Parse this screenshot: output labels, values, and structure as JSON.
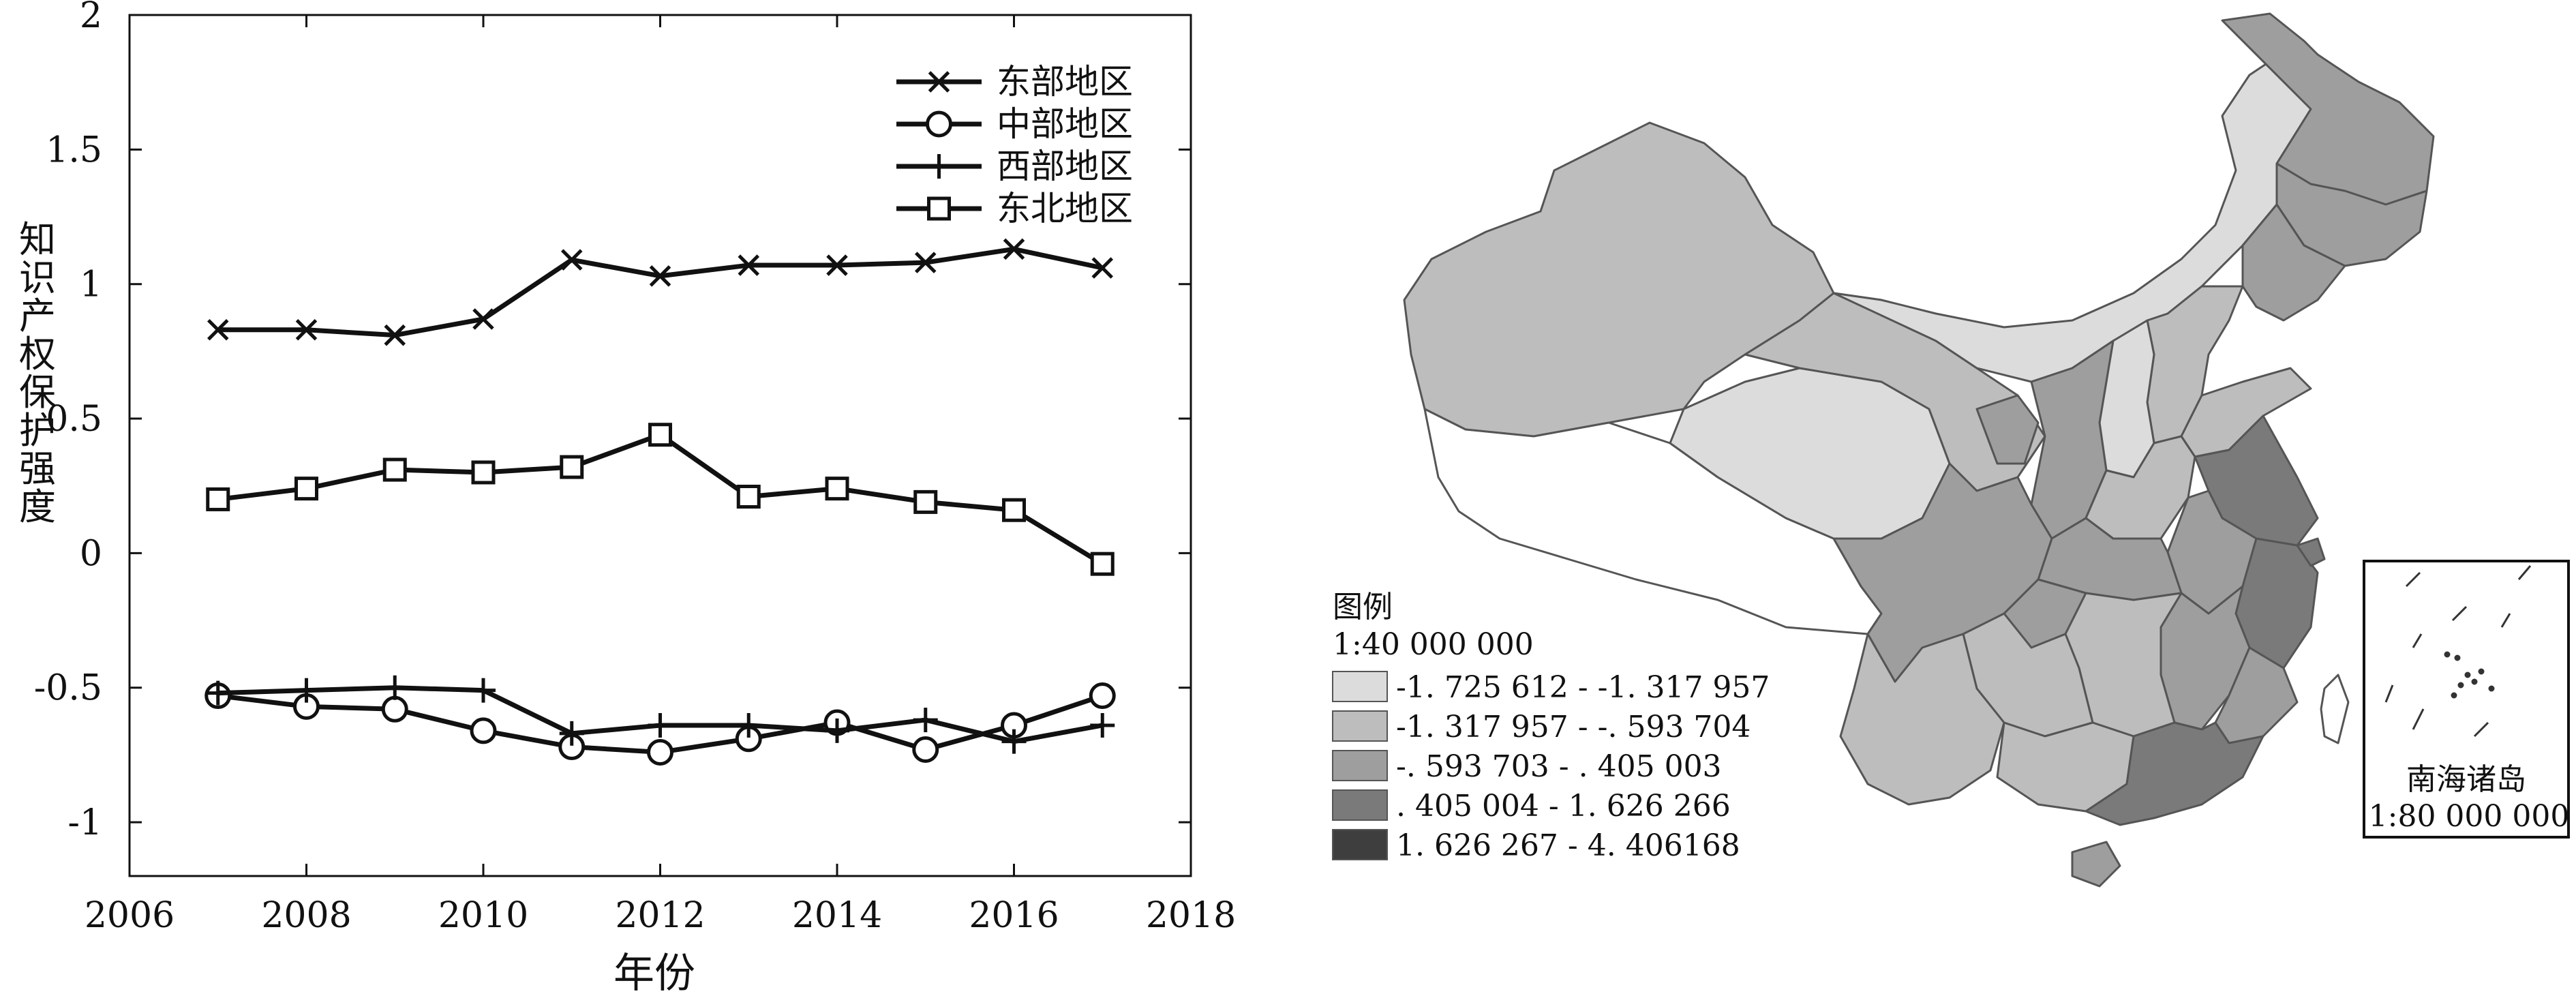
{
  "chart_data": [
    {
      "type": "line",
      "title": "",
      "xlabel": "年份",
      "ylabel": "知识产权保护强度",
      "xlim": [
        2006,
        2018
      ],
      "ylim": [
        -1.2,
        2
      ],
      "xticks": [
        "2006",
        "2008",
        "2010",
        "2012",
        "2014",
        "2016",
        "2018"
      ],
      "yticks": [
        "2",
        "1.5",
        "1",
        "0.5",
        "0",
        "-0.5",
        "-1"
      ],
      "x": [
        2007,
        2008,
        2009,
        2010,
        2011,
        2012,
        2013,
        2014,
        2015,
        2016,
        2017
      ],
      "legend_position": "top-right",
      "grid": false,
      "series": [
        {
          "name": "东部地区",
          "marker": "x",
          "values": [
            0.83,
            0.83,
            0.81,
            0.87,
            1.09,
            1.03,
            1.07,
            1.07,
            1.08,
            1.13,
            1.06
          ]
        },
        {
          "name": "中部地区",
          "marker": "o",
          "values": [
            -0.53,
            -0.57,
            -0.58,
            -0.66,
            -0.72,
            -0.74,
            -0.69,
            -0.63,
            -0.73,
            -0.64,
            -0.53
          ]
        },
        {
          "name": "西部地区",
          "marker": "+",
          "values": [
            -0.52,
            -0.51,
            -0.5,
            -0.51,
            -0.67,
            -0.64,
            -0.64,
            -0.66,
            -0.62,
            -0.7,
            -0.64
          ]
        },
        {
          "name": "东北地区",
          "marker": "s",
          "values": [
            0.2,
            0.24,
            0.31,
            0.3,
            0.32,
            0.44,
            0.21,
            0.24,
            0.19,
            0.16,
            -0.04
          ]
        }
      ]
    }
  ],
  "map": {
    "legend_title": "图例",
    "scale": "1:40 000 000",
    "legend_items": [
      {
        "label": "-1. 725 612 - -1. 317 957",
        "color": "#dcdcdc"
      },
      {
        "label": "-1. 317 957 - -. 593 704",
        "color": "#bdbdbd"
      },
      {
        "label": "-. 593 703 - . 405 003",
        "color": "#9e9e9e"
      },
      {
        "label": ". 405 004 - 1. 626 266",
        "color": "#7a7a7a"
      },
      {
        "label": "1. 626 267 - 4. 406168",
        "color": "#3e3e3e"
      }
    ],
    "inset_title": "南海诸岛",
    "inset_scale": "1:80 000 000"
  }
}
